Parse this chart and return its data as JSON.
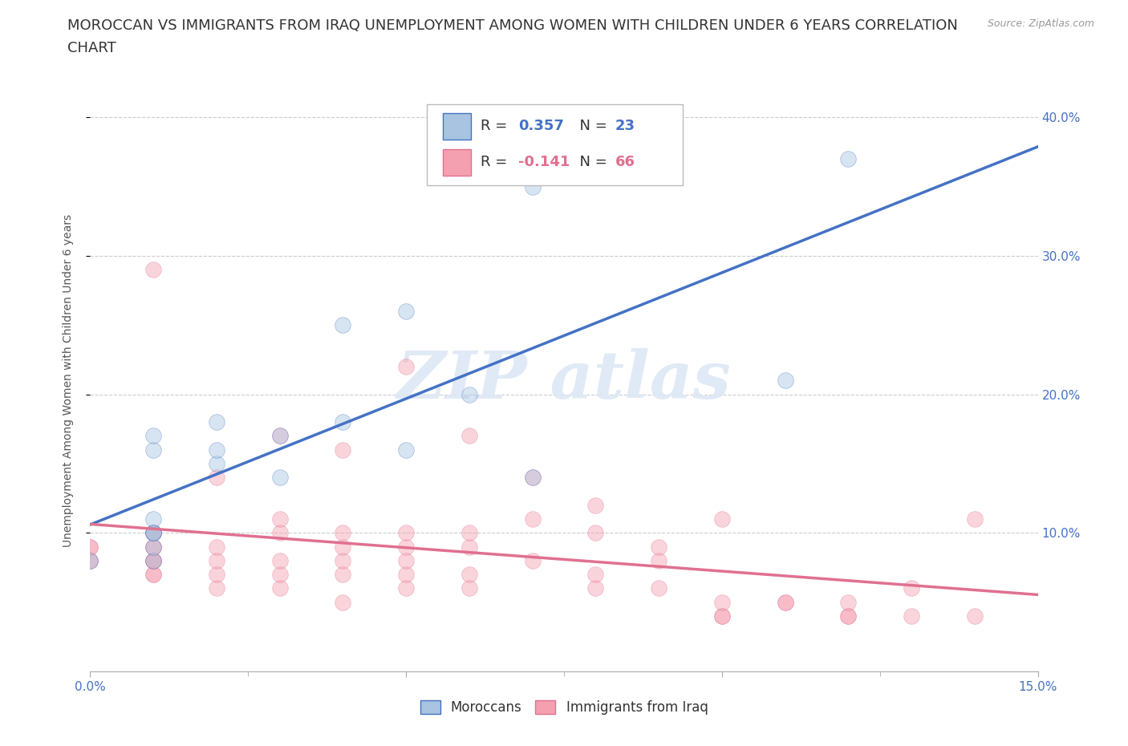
{
  "title_line1": "MOROCCAN VS IMMIGRANTS FROM IRAQ UNEMPLOYMENT AMONG WOMEN WITH CHILDREN UNDER 6 YEARS CORRELATION",
  "title_line2": "CHART",
  "source": "Source: ZipAtlas.com",
  "ylabel": "Unemployment Among Women with Children Under 6 years",
  "xlim": [
    0.0,
    0.15
  ],
  "ylim": [
    0.0,
    0.42
  ],
  "yticks": [
    0.1,
    0.2,
    0.3,
    0.4
  ],
  "ytick_labels": [
    "10.0%",
    "20.0%",
    "30.0%",
    "40.0%"
  ],
  "xtick_left_label": "0.0%",
  "xtick_right_label": "15.0%",
  "moroccan_R": 0.357,
  "moroccan_N": 23,
  "iraq_R": -0.141,
  "iraq_N": 66,
  "moroccan_color": "#a8c4e0",
  "iraq_color": "#f4a0b0",
  "moroccan_line_color": "#4472c4",
  "iraq_line_color": "#e07090",
  "legend_moroccan": "Moroccans",
  "legend_iraq": "Immigrants from Iraq",
  "moroccan_x": [
    0.0,
    0.01,
    0.01,
    0.01,
    0.01,
    0.01,
    0.01,
    0.01,
    0.01,
    0.02,
    0.02,
    0.02,
    0.03,
    0.03,
    0.04,
    0.04,
    0.05,
    0.05,
    0.06,
    0.07,
    0.07,
    0.11,
    0.12
  ],
  "moroccan_y": [
    0.08,
    0.08,
    0.09,
    0.1,
    0.1,
    0.1,
    0.11,
    0.16,
    0.17,
    0.15,
    0.16,
    0.18,
    0.14,
    0.17,
    0.18,
    0.25,
    0.16,
    0.26,
    0.2,
    0.14,
    0.35,
    0.21,
    0.37
  ],
  "iraq_x": [
    0.0,
    0.0,
    0.0,
    0.0,
    0.01,
    0.01,
    0.01,
    0.01,
    0.01,
    0.01,
    0.01,
    0.01,
    0.01,
    0.01,
    0.01,
    0.02,
    0.02,
    0.02,
    0.02,
    0.02,
    0.03,
    0.03,
    0.03,
    0.03,
    0.03,
    0.03,
    0.04,
    0.04,
    0.04,
    0.04,
    0.04,
    0.04,
    0.05,
    0.05,
    0.05,
    0.05,
    0.05,
    0.05,
    0.06,
    0.06,
    0.06,
    0.06,
    0.06,
    0.07,
    0.07,
    0.07,
    0.08,
    0.08,
    0.08,
    0.08,
    0.09,
    0.09,
    0.09,
    0.1,
    0.1,
    0.1,
    0.1,
    0.11,
    0.11,
    0.12,
    0.12,
    0.12,
    0.13,
    0.13,
    0.14,
    0.14
  ],
  "iraq_y": [
    0.08,
    0.08,
    0.09,
    0.09,
    0.07,
    0.07,
    0.08,
    0.08,
    0.08,
    0.09,
    0.09,
    0.1,
    0.1,
    0.1,
    0.29,
    0.06,
    0.07,
    0.08,
    0.09,
    0.14,
    0.06,
    0.07,
    0.08,
    0.1,
    0.11,
    0.17,
    0.05,
    0.07,
    0.08,
    0.09,
    0.1,
    0.16,
    0.06,
    0.07,
    0.08,
    0.09,
    0.1,
    0.22,
    0.06,
    0.07,
    0.09,
    0.1,
    0.17,
    0.08,
    0.11,
    0.14,
    0.06,
    0.07,
    0.1,
    0.12,
    0.06,
    0.08,
    0.09,
    0.04,
    0.04,
    0.05,
    0.11,
    0.05,
    0.05,
    0.04,
    0.04,
    0.05,
    0.04,
    0.06,
    0.04,
    0.11
  ],
  "grid_color": "#cccccc",
  "background_color": "#ffffff",
  "title_fontsize": 13,
  "axis_label_fontsize": 10,
  "tick_fontsize": 11,
  "dot_size": 200,
  "dot_alpha": 0.45,
  "line_width": 2.5
}
